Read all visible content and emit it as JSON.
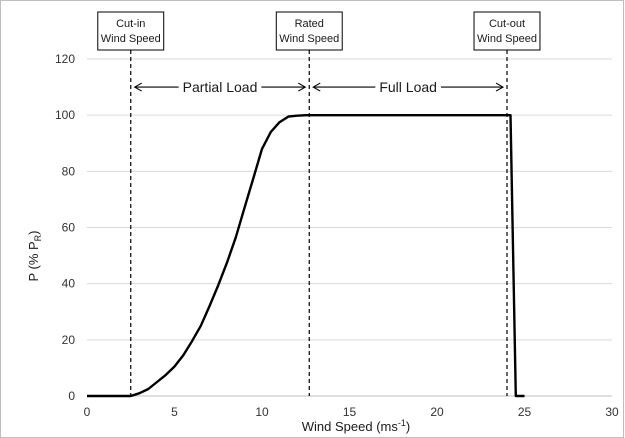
{
  "chart_data": {
    "type": "line",
    "title": "",
    "xlabel": "Wind Speed (ms",
    "xlabel_sup": "-1",
    "xlabel_end": ")",
    "ylabel": "P (% P",
    "ylabel_sub": "R",
    "ylabel_end": ")",
    "xlim": [
      0,
      30
    ],
    "ylim": [
      0,
      120
    ],
    "xticks": [
      "0",
      "5",
      "10",
      "15",
      "20",
      "25",
      "30"
    ],
    "yticks": [
      "0",
      "20",
      "40",
      "60",
      "80",
      "100",
      "120"
    ],
    "grid": "horizontal",
    "series": [
      {
        "x": [
          0,
          2.5,
          3,
          3.5,
          4,
          4.5,
          5,
          5.5,
          6,
          6.5,
          7,
          7.5,
          8,
          8.5,
          9,
          9.5,
          10,
          10.5,
          11,
          11.5,
          12,
          12.5,
          13,
          14,
          15,
          20,
          24,
          24.2,
          24.5,
          25
        ],
        "y": [
          0,
          0,
          1,
          2.5,
          5,
          7.5,
          10.5,
          14.5,
          19.5,
          25,
          32,
          39.5,
          47.5,
          56.5,
          67,
          77.5,
          88,
          94,
          97.5,
          99.5,
          99.8,
          100,
          100,
          100,
          100,
          100,
          100,
          100,
          0,
          0
        ],
        "color": "#000000"
      }
    ],
    "vlines": [
      {
        "x": 2.5,
        "style": "dashed"
      },
      {
        "x": 12.7,
        "style": "dashed"
      },
      {
        "x": 24,
        "style": "dashed"
      }
    ],
    "annotations": {
      "boxes": [
        {
          "x": 2.5,
          "lines": [
            "Cut-in",
            "Wind Speed"
          ]
        },
        {
          "x": 12.7,
          "lines": [
            "Rated",
            "Wind Speed"
          ]
        },
        {
          "x": 24,
          "lines": [
            "Cut-out",
            "Wind Speed"
          ]
        }
      ],
      "regions": [
        {
          "label": "Partial Load",
          "from": 2.5,
          "to": 12.7,
          "y": 110
        },
        {
          "label": "Full Load",
          "from": 12.7,
          "to": 24,
          "y": 110
        }
      ]
    },
    "colors": {
      "line": "#000000",
      "grid": "#d9d9d9",
      "frame": "#bfbfbf"
    }
  }
}
